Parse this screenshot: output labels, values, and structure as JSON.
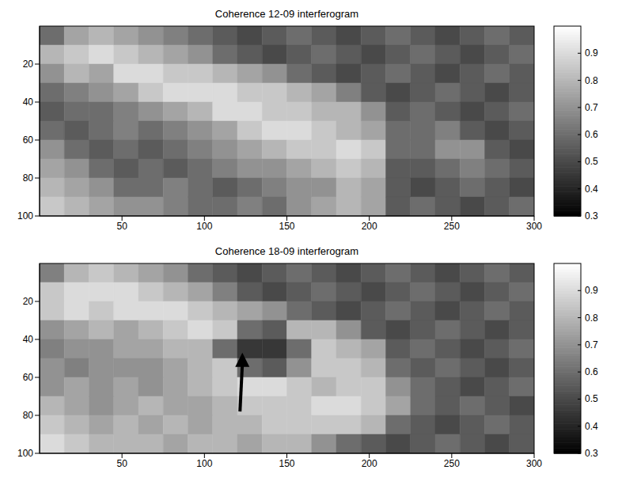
{
  "chart_data": [
    {
      "type": "heatmap",
      "title": "Coherence 12-09 interferogram",
      "xlim": [
        0,
        300
      ],
      "ylim": [
        0,
        100
      ],
      "xticks": [
        50,
        100,
        150,
        200,
        250,
        300
      ],
      "yticks": [
        20,
        40,
        60,
        80,
        100
      ],
      "x_edges": [
        0,
        15,
        30,
        45,
        60,
        75,
        90,
        105,
        120,
        135,
        150,
        165,
        180,
        195,
        210,
        225,
        240,
        255,
        270,
        285,
        300
      ],
      "y_edges": [
        0,
        10,
        20,
        30,
        40,
        50,
        60,
        70,
        80,
        90,
        100
      ],
      "cells": [
        [
          0.6,
          0.75,
          0.8,
          0.75,
          0.7,
          0.65,
          0.6,
          0.55,
          0.5,
          0.55,
          0.6,
          0.55,
          0.5,
          0.55,
          0.6,
          0.55,
          0.5,
          0.55,
          0.6,
          0.55
        ],
        [
          0.8,
          0.85,
          0.9,
          0.85,
          0.8,
          0.75,
          0.7,
          0.6,
          0.55,
          0.5,
          0.55,
          0.6,
          0.55,
          0.5,
          0.55,
          0.6,
          0.55,
          0.5,
          0.55,
          0.6
        ],
        [
          0.7,
          0.8,
          0.75,
          0.9,
          0.9,
          0.85,
          0.85,
          0.8,
          0.75,
          0.7,
          0.6,
          0.55,
          0.5,
          0.55,
          0.6,
          0.55,
          0.5,
          0.55,
          0.6,
          0.55
        ],
        [
          0.6,
          0.65,
          0.7,
          0.75,
          0.85,
          0.9,
          0.9,
          0.9,
          0.85,
          0.85,
          0.8,
          0.75,
          0.65,
          0.55,
          0.5,
          0.55,
          0.6,
          0.55,
          0.5,
          0.55
        ],
        [
          0.55,
          0.6,
          0.6,
          0.65,
          0.7,
          0.75,
          0.8,
          0.9,
          0.9,
          0.85,
          0.85,
          0.8,
          0.8,
          0.7,
          0.55,
          0.6,
          0.55,
          0.5,
          0.55,
          0.6
        ],
        [
          0.6,
          0.55,
          0.6,
          0.65,
          0.6,
          0.65,
          0.7,
          0.75,
          0.85,
          0.9,
          0.9,
          0.85,
          0.8,
          0.75,
          0.6,
          0.6,
          0.65,
          0.55,
          0.5,
          0.55
        ],
        [
          0.7,
          0.6,
          0.55,
          0.6,
          0.55,
          0.6,
          0.65,
          0.7,
          0.75,
          0.8,
          0.85,
          0.85,
          0.9,
          0.85,
          0.6,
          0.6,
          0.7,
          0.7,
          0.55,
          0.5
        ],
        [
          0.75,
          0.7,
          0.6,
          0.55,
          0.6,
          0.55,
          0.6,
          0.65,
          0.7,
          0.7,
          0.75,
          0.8,
          0.85,
          0.8,
          0.55,
          0.55,
          0.6,
          0.65,
          0.6,
          0.55
        ],
        [
          0.8,
          0.75,
          0.7,
          0.6,
          0.6,
          0.65,
          0.6,
          0.55,
          0.6,
          0.65,
          0.7,
          0.7,
          0.8,
          0.75,
          0.55,
          0.5,
          0.55,
          0.6,
          0.55,
          0.5
        ],
        [
          0.85,
          0.8,
          0.75,
          0.7,
          0.7,
          0.65,
          0.6,
          0.6,
          0.65,
          0.6,
          0.7,
          0.75,
          0.8,
          0.75,
          0.55,
          0.6,
          0.55,
          0.5,
          0.55,
          0.6
        ]
      ],
      "colorbar_range": [
        0.3,
        1
      ],
      "colorbar_ticks": [
        0.3,
        0.4,
        0.5,
        0.6,
        0.7,
        0.8,
        0.9
      ]
    },
    {
      "type": "heatmap",
      "title": "Coherence 18-09 interferogram",
      "xlim": [
        0,
        300
      ],
      "ylim": [
        0,
        100
      ],
      "xticks": [
        50,
        100,
        150,
        200,
        250,
        300
      ],
      "yticks": [
        20,
        40,
        60,
        80,
        100
      ],
      "x_edges": [
        0,
        15,
        30,
        45,
        60,
        75,
        90,
        105,
        120,
        135,
        150,
        165,
        180,
        195,
        210,
        225,
        240,
        255,
        270,
        285,
        300
      ],
      "y_edges": [
        0,
        10,
        20,
        30,
        40,
        50,
        60,
        70,
        80,
        90,
        100
      ],
      "cells": [
        [
          0.65,
          0.8,
          0.85,
          0.8,
          0.75,
          0.7,
          0.6,
          0.55,
          0.5,
          0.55,
          0.6,
          0.55,
          0.5,
          0.55,
          0.6,
          0.55,
          0.5,
          0.55,
          0.6,
          0.55
        ],
        [
          0.85,
          0.9,
          0.9,
          0.9,
          0.85,
          0.8,
          0.75,
          0.65,
          0.55,
          0.5,
          0.55,
          0.6,
          0.55,
          0.5,
          0.55,
          0.6,
          0.55,
          0.5,
          0.55,
          0.6
        ],
        [
          0.85,
          0.9,
          0.85,
          0.9,
          0.9,
          0.9,
          0.85,
          0.8,
          0.75,
          0.7,
          0.6,
          0.55,
          0.5,
          0.55,
          0.6,
          0.55,
          0.5,
          0.55,
          0.6,
          0.55
        ],
        [
          0.7,
          0.75,
          0.8,
          0.75,
          0.8,
          0.85,
          0.9,
          0.85,
          0.6,
          0.55,
          0.8,
          0.8,
          0.7,
          0.55,
          0.5,
          0.55,
          0.6,
          0.55,
          0.5,
          0.55
        ],
        [
          0.65,
          0.7,
          0.7,
          0.75,
          0.75,
          0.8,
          0.8,
          0.6,
          0.45,
          0.45,
          0.6,
          0.85,
          0.8,
          0.75,
          0.55,
          0.6,
          0.55,
          0.5,
          0.55,
          0.6
        ],
        [
          0.7,
          0.65,
          0.7,
          0.7,
          0.7,
          0.75,
          0.8,
          0.85,
          0.6,
          0.55,
          0.7,
          0.85,
          0.85,
          0.8,
          0.6,
          0.55,
          0.6,
          0.55,
          0.5,
          0.55
        ],
        [
          0.7,
          0.75,
          0.7,
          0.75,
          0.7,
          0.75,
          0.8,
          0.85,
          0.9,
          0.9,
          0.85,
          0.8,
          0.85,
          0.85,
          0.7,
          0.6,
          0.55,
          0.5,
          0.55,
          0.6
        ],
        [
          0.8,
          0.75,
          0.7,
          0.75,
          0.8,
          0.75,
          0.75,
          0.8,
          0.85,
          0.85,
          0.85,
          0.9,
          0.9,
          0.85,
          0.75,
          0.6,
          0.55,
          0.6,
          0.55,
          0.5
        ],
        [
          0.85,
          0.8,
          0.75,
          0.8,
          0.75,
          0.8,
          0.75,
          0.8,
          0.8,
          0.85,
          0.85,
          0.85,
          0.85,
          0.8,
          0.6,
          0.55,
          0.5,
          0.55,
          0.6,
          0.55
        ],
        [
          0.9,
          0.85,
          0.8,
          0.8,
          0.8,
          0.75,
          0.8,
          0.8,
          0.75,
          0.8,
          0.8,
          0.7,
          0.6,
          0.55,
          0.5,
          0.55,
          0.6,
          0.55,
          0.5,
          0.55
        ]
      ],
      "colorbar_range": [
        0.3,
        1
      ],
      "colorbar_ticks": [
        0.3,
        0.4,
        0.5,
        0.6,
        0.7,
        0.8,
        0.9
      ]
    }
  ]
}
